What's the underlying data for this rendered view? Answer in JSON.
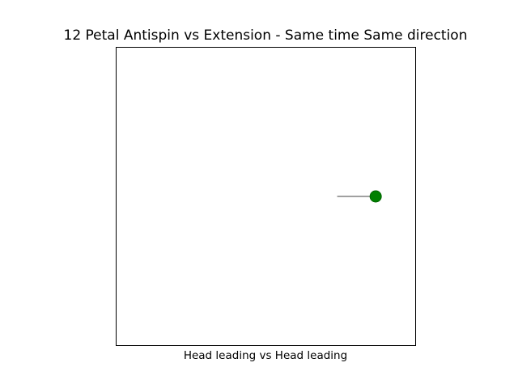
{
  "chart_data": {
    "type": "line",
    "title": "12 Petal Antispin vs Extension - Same time Same direction",
    "xlabel": "Head leading vs Head leading",
    "ylabel": "",
    "xlim": [
      -1.05,
      1.05
    ],
    "ylim": [
      -1.05,
      1.05
    ],
    "grid": false,
    "ticks": false,
    "series": [
      {
        "type": "line",
        "color": "#000000",
        "x": [
          0.5,
          0.77
        ],
        "y": [
          0,
          0
        ]
      },
      {
        "type": "scatter",
        "color": "#008000",
        "x": [
          0.77
        ],
        "y": [
          0
        ]
      }
    ]
  }
}
